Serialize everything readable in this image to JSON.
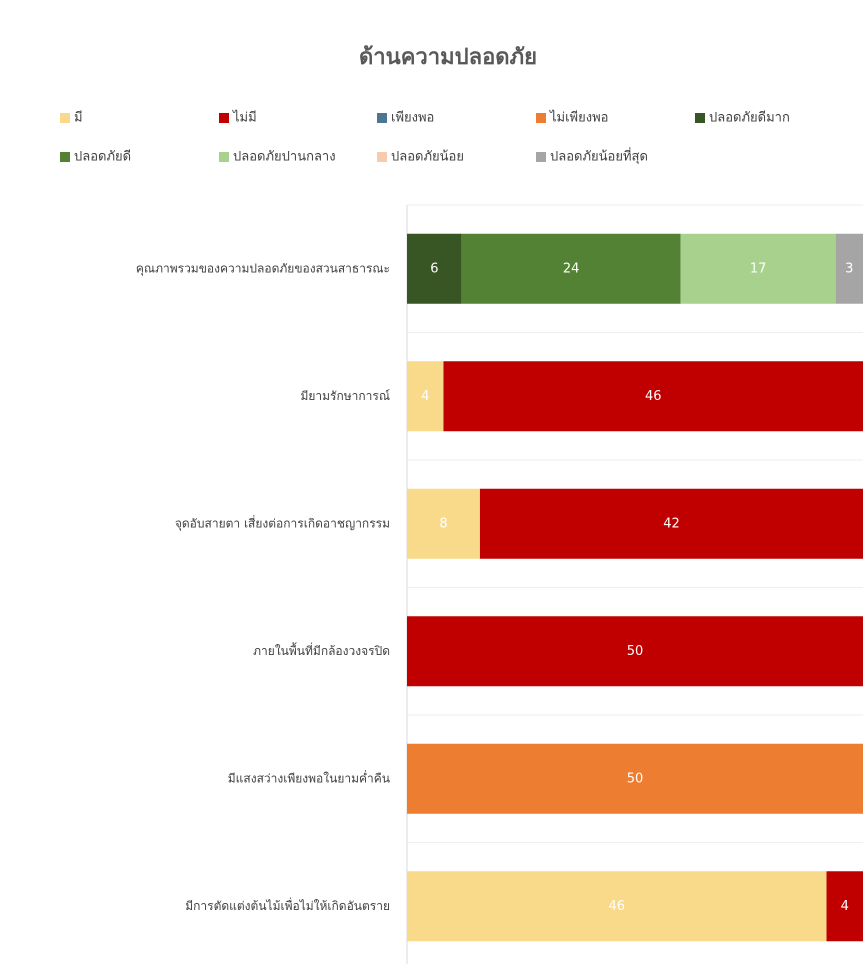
{
  "chart_data": {
    "type": "stacked-bar-horizontal",
    "title": "ด้านความปลอดภัย",
    "categories": [
      "คุณภาพรวมของความปลอดภัยของสวนสาธารณะ",
      "มียามรักษาการณ์",
      "จุดอับสายตา เสี่ยงต่อการเกิดอาชญากรรม",
      "ภายในพื้นที่มีกล้องวงจรปิด",
      "มีแสงสว่างเพียงพอในยามค่ำคืน",
      "มีการตัดแต่งต้นไม้เพื่อไม่ให้เกิดอันตราย"
    ],
    "series": [
      {
        "name": "มี",
        "color": "#f9d98a",
        "values": [
          null,
          4,
          8,
          null,
          null,
          46
        ]
      },
      {
        "name": "ไม่มี",
        "color": "#c00000",
        "values": [
          null,
          46,
          42,
          50,
          null,
          4
        ]
      },
      {
        "name": "เพียงพอ",
        "color": "#4e7591",
        "values": [
          null,
          null,
          null,
          null,
          null,
          null
        ]
      },
      {
        "name": "ไม่เพียงพอ",
        "color": "#ed7d31",
        "values": [
          null,
          null,
          null,
          null,
          50,
          null
        ]
      },
      {
        "name": "ปลอดภัยดีมาก",
        "color": "#375623",
        "values": [
          6,
          null,
          null,
          null,
          null,
          null
        ]
      },
      {
        "name": "ปลอดภัยดี",
        "color": "#548235",
        "values": [
          24,
          null,
          null,
          null,
          null,
          null
        ]
      },
      {
        "name": "ปลอดภัยปานกลาง",
        "color": "#a9d18e",
        "values": [
          17,
          null,
          null,
          null,
          null,
          null
        ]
      },
      {
        "name": "ปลอดภัยน้อย",
        "color": "#f8cbad",
        "values": [
          null,
          null,
          null,
          null,
          null,
          null
        ]
      },
      {
        "name": "ปลอดภัยน้อยที่สุด",
        "color": "#a5a5a5",
        "values": [
          3,
          null,
          null,
          null,
          null,
          null
        ]
      }
    ],
    "xlim": [
      0,
      50
    ]
  }
}
